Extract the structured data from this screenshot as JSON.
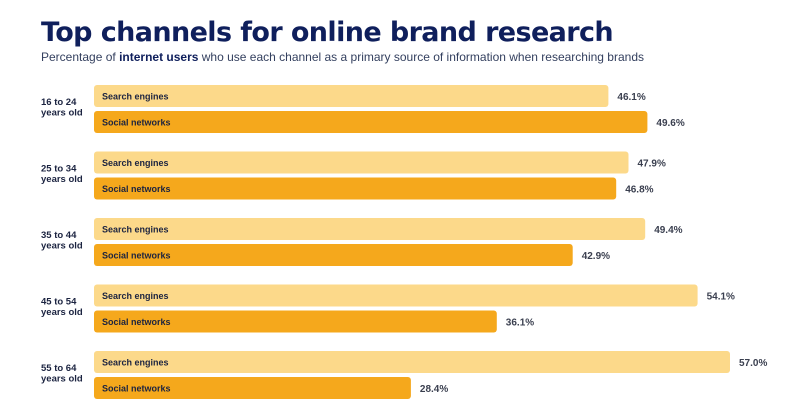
{
  "chart_data": {
    "type": "bar",
    "orientation": "horizontal",
    "title": "Top channels for online brand research",
    "subtitle": {
      "prefix": "Percentage of ",
      "emphasis": "internet users",
      "suffix": " who use each channel as a primary source of information when researching brands"
    },
    "categories": [
      "16 to 24 years old",
      "25 to 34 years old",
      "35 to 44 years old",
      "45 to 54 years old",
      "55 to 64 years old"
    ],
    "category_lines": [
      [
        "16 to 24",
        "years old"
      ],
      [
        "25 to 34",
        "years old"
      ],
      [
        "35 to 44",
        "years old"
      ],
      [
        "45 to 54",
        "years old"
      ],
      [
        "55 to 64",
        "years old"
      ]
    ],
    "series": [
      {
        "name": "Search engines",
        "color": "#fcd98a",
        "values": [
          46.1,
          47.9,
          49.4,
          54.1,
          57.0
        ]
      },
      {
        "name": "Social networks",
        "color": "#f5a81c",
        "values": [
          49.6,
          46.8,
          42.9,
          36.1,
          28.4
        ]
      }
    ],
    "value_suffix": "%",
    "xlim": [
      0,
      57.0
    ],
    "grid": false,
    "legend": "none"
  }
}
